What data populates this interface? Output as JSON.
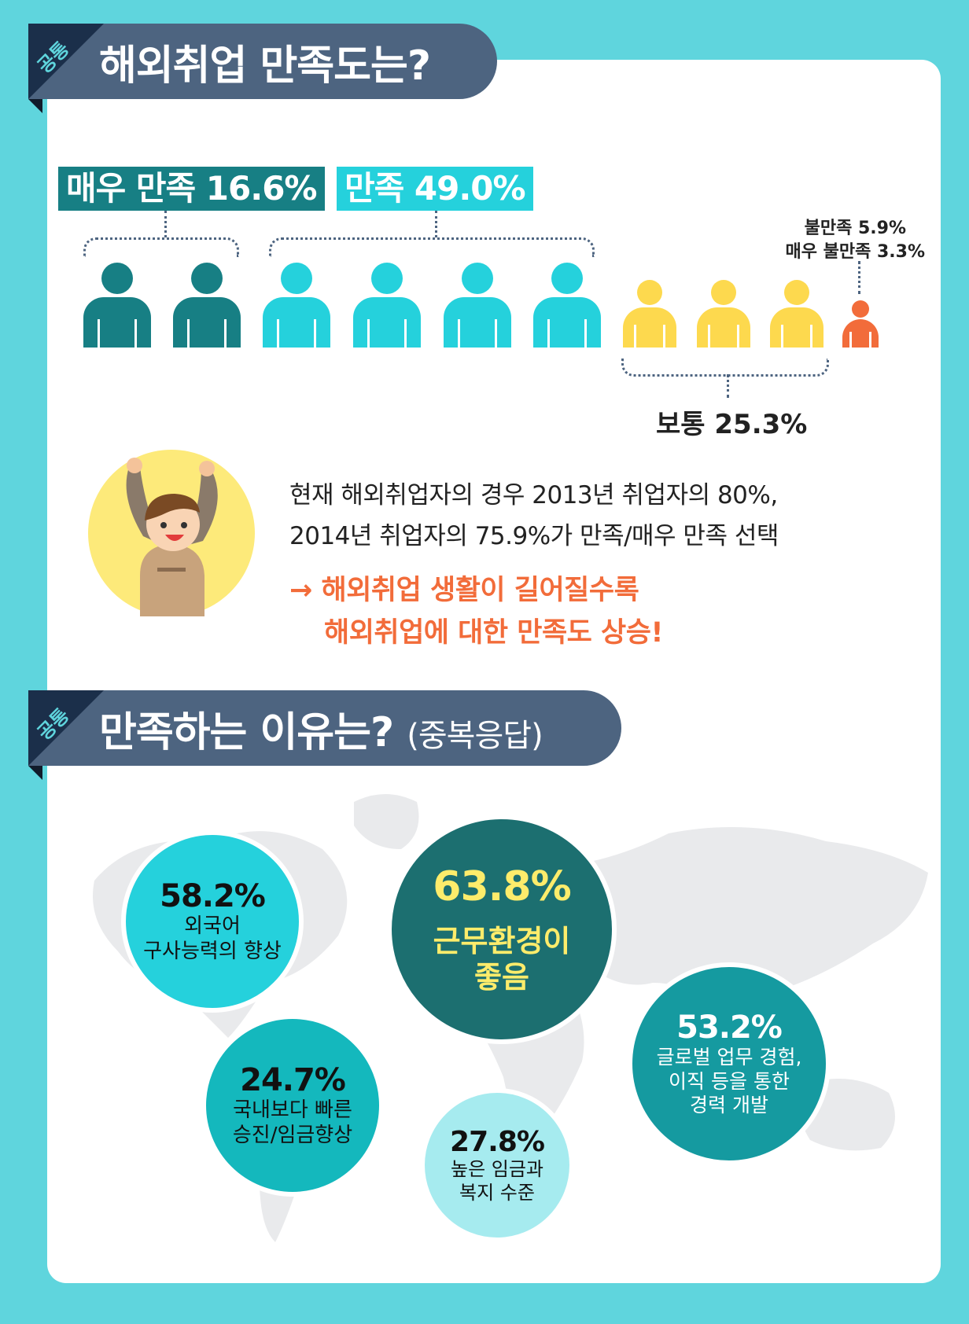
{
  "section1": {
    "tag": "공통",
    "title": "해외취업 만족도는?"
  },
  "labels": {
    "very_satisfied": "매우 만족 16.6%",
    "satisfied": "만족 49.0%",
    "dissatisfied": "불만족 5.9%",
    "very_dissatisfied": "매우 불만족 3.3%",
    "neutral": "보통 25.3%"
  },
  "colors": {
    "background": "#5fd5dd",
    "very_satisfied": "#177f84",
    "satisfied": "#25d1dc",
    "neutral": "#fdd94e",
    "dissatisfied": "#f26c3a",
    "header": "#4d6480",
    "accent_text": "#f26c3a"
  },
  "summary": {
    "line1": "현재 해외취업자의 경우 2013년 취업자의 80%,",
    "line2": "2014년 취업자의 75.9%가 만족/매우 만족 선택",
    "highlight1": "→ 해외취업 생활이 길어질수록",
    "highlight2": "해외취업에 대한 만족도 상승!"
  },
  "section2": {
    "tag": "공통",
    "title": "만족하는 이유는?",
    "subtitle": "(중복응답)"
  },
  "reasons": [
    {
      "pct": "58.2%",
      "line1": "외국어",
      "line2": "구사능력의 향상"
    },
    {
      "pct": "63.8%",
      "line1": "근무환경이",
      "line2": "좋음"
    },
    {
      "pct": "53.2%",
      "line1": "글로벌 업무 경험,",
      "line2": "이직 등을 통한",
      "line3": "경력 개발"
    },
    {
      "pct": "24.7%",
      "line1": "국내보다 빠른",
      "line2": "승진/임금향상"
    },
    {
      "pct": "27.8%",
      "line1": "높은 임금과",
      "line2": "복지 수준"
    }
  ]
}
